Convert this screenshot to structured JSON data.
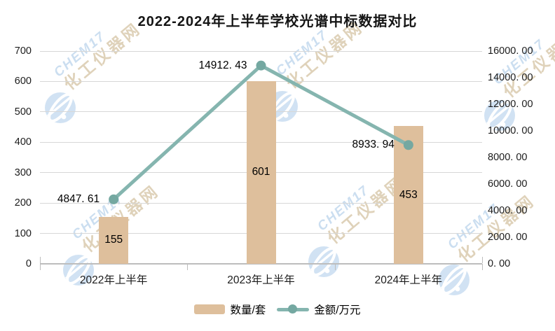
{
  "title": "2022-2024年上半年学校光谱中标数据对比",
  "watermark": {
    "brand": "CHEM17",
    "name": "化工仪器网"
  },
  "colors": {
    "bar": "#debf9c",
    "line": "#85b5af",
    "marker": "#74a8a1",
    "grid": "#d7d7d7",
    "axis": "#bdbdbd",
    "wm_blue": "#c3d9ee",
    "wm_tan": "#dacbae"
  },
  "chart_data": {
    "type": "bar+line combo",
    "title": "2022-2024年上半年学校光谱中标数据对比",
    "categories": [
      "2022年上半年",
      "2023年上半年",
      "2024年上半年"
    ],
    "series": [
      {
        "name": "数量/套",
        "type": "bar",
        "axis": "left",
        "values": [
          155,
          601,
          453
        ],
        "labels": [
          "155",
          "601",
          "453"
        ]
      },
      {
        "name": "金额/万元",
        "type": "line",
        "axis": "right",
        "values": [
          4847.61,
          14912.43,
          8933.94
        ],
        "labels": [
          "4847. 61",
          "14912. 43",
          "8933. 94"
        ]
      }
    ],
    "left_axis": {
      "min": 0,
      "max": 700,
      "step": 100,
      "labels": [
        "0",
        "100",
        "200",
        "300",
        "400",
        "500",
        "600",
        "700"
      ]
    },
    "right_axis": {
      "min": 0,
      "max": 16000,
      "step": 2000,
      "labels": [
        "0. 00",
        "2000. 00",
        "4000. 00",
        "6000. 00",
        "8000. 00",
        "10000. 00",
        "12000. 00",
        "14000. 00",
        "16000. 00"
      ]
    },
    "grid": true,
    "legend_position": "bottom"
  }
}
